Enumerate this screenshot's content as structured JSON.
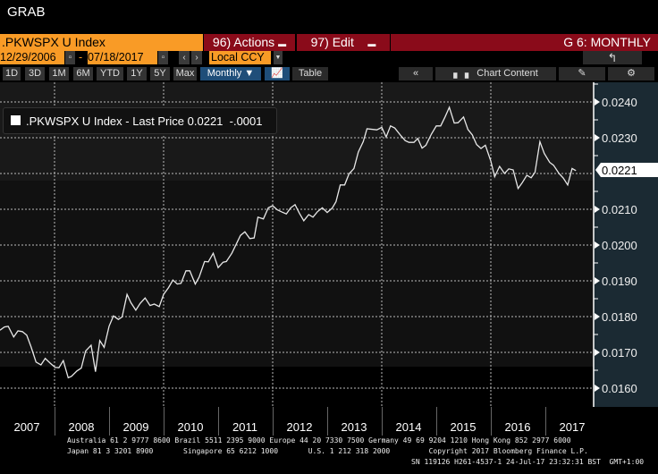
{
  "window": {
    "title": "GRAB"
  },
  "header": {
    "ticker": ".PKWSPX U Index",
    "actions_label": "96) Actions",
    "edit_label": "97) Edit",
    "chart_title": "G 6: MONTHLY"
  },
  "range": {
    "start_date": "12/29/2006",
    "separator": "-",
    "end_date": "07/18/2017",
    "currency": "Local CCY"
  },
  "toolbar": {
    "periods": [
      "1D",
      "3D",
      "1M",
      "6M",
      "YTD",
      "1Y",
      "5Y",
      "Max"
    ],
    "frequency": "Monthly ▼",
    "table_label": "Table",
    "collapse_label": "«",
    "chart_content_label": "Chart Content"
  },
  "legend": {
    "series": ".PKWSPX U Index - Last Price",
    "last": "0.0221",
    "change": "-.0001"
  },
  "colors": {
    "orange": "#f99b26",
    "red": "#8a0b1a",
    "blue": "#1f4e79",
    "line": "#e8e8e8"
  },
  "chart_data": {
    "type": "line",
    "title": ".PKWSPX U Index - Last Price",
    "xlabel": "",
    "ylabel": "",
    "ylim": [
      0.0155,
      0.0249
    ],
    "xlim": [
      2007.0,
      2017.89
    ],
    "yticks": [
      "0.0160",
      "0.0170",
      "0.0180",
      "0.0190",
      "0.0200",
      "0.0210",
      "0.0220",
      "0.0230",
      "0.0240"
    ],
    "ytick_values": [
      0.016,
      0.017,
      0.018,
      0.019,
      0.02,
      0.021,
      0.022,
      0.023,
      0.024
    ],
    "xticks": [
      "2007",
      "2008",
      "2009",
      "2010",
      "2011",
      "2012",
      "2013",
      "2014",
      "2015",
      "2016",
      "2017"
    ],
    "last_value_label": "0.0221",
    "grid": true,
    "legend_position": "top-left",
    "series": [
      {
        "name": ".PKWSPX U Index",
        "points": [
          [
            2007.0,
            0.01762
          ],
          [
            2007.08,
            0.01771
          ],
          [
            2007.15,
            0.01773
          ],
          [
            2007.25,
            0.01743
          ],
          [
            2007.33,
            0.0176
          ],
          [
            2007.41,
            0.01758
          ],
          [
            2007.49,
            0.01748
          ],
          [
            2007.57,
            0.01715
          ],
          [
            2007.66,
            0.01673
          ],
          [
            2007.75,
            0.01665
          ],
          [
            2007.83,
            0.01683
          ],
          [
            2007.92,
            0.0167
          ],
          [
            2008.01,
            0.01658
          ],
          [
            2008.08,
            0.01657
          ],
          [
            2008.16,
            0.01677
          ],
          [
            2008.25,
            0.01629
          ],
          [
            2008.31,
            0.01633
          ],
          [
            2008.41,
            0.01648
          ],
          [
            2008.49,
            0.01656
          ],
          [
            2008.57,
            0.01704
          ],
          [
            2008.67,
            0.0172
          ],
          [
            2008.75,
            0.01646
          ],
          [
            2008.83,
            0.01733
          ],
          [
            2008.91,
            0.01714
          ],
          [
            2009.0,
            0.01773
          ],
          [
            2009.08,
            0.01802
          ],
          [
            2009.17,
            0.01792
          ],
          [
            2009.24,
            0.01799
          ],
          [
            2009.33,
            0.01862
          ],
          [
            2009.4,
            0.01839
          ],
          [
            2009.49,
            0.01818
          ],
          [
            2009.57,
            0.01837
          ],
          [
            2009.66,
            0.01852
          ],
          [
            2009.75,
            0.01831
          ],
          [
            2009.83,
            0.01835
          ],
          [
            2009.92,
            0.01828
          ],
          [
            2010.0,
            0.01862
          ],
          [
            2010.09,
            0.01881
          ],
          [
            2010.17,
            0.01902
          ],
          [
            2010.25,
            0.01891
          ],
          [
            2010.32,
            0.01893
          ],
          [
            2010.41,
            0.01928
          ],
          [
            2010.48,
            0.01928
          ],
          [
            2010.58,
            0.01891
          ],
          [
            2010.65,
            0.0191
          ],
          [
            2010.75,
            0.01954
          ],
          [
            2010.82,
            0.01953
          ],
          [
            2010.91,
            0.01977
          ],
          [
            2011.0,
            0.01937
          ],
          [
            2011.09,
            0.01952
          ],
          [
            2011.15,
            0.01954
          ],
          [
            2011.25,
            0.01977
          ],
          [
            2011.41,
            0.02027
          ],
          [
            2011.49,
            0.02037
          ],
          [
            2011.58,
            0.02018
          ],
          [
            2011.66,
            0.0202
          ],
          [
            2011.73,
            0.02078
          ],
          [
            2011.83,
            0.02073
          ],
          [
            2011.92,
            0.02104
          ],
          [
            2012.0,
            0.0211
          ],
          [
            2012.08,
            0.02099
          ],
          [
            2012.16,
            0.02093
          ],
          [
            2012.25,
            0.02087
          ],
          [
            2012.33,
            0.02104
          ],
          [
            2012.41,
            0.02113
          ],
          [
            2012.49,
            0.02089
          ],
          [
            2012.57,
            0.02068
          ],
          [
            2012.66,
            0.02085
          ],
          [
            2012.74,
            0.02078
          ],
          [
            2012.82,
            0.02093
          ],
          [
            2012.91,
            0.02104
          ],
          [
            2013.0,
            0.02091
          ],
          [
            2013.09,
            0.02103
          ],
          [
            2013.16,
            0.02121
          ],
          [
            2013.24,
            0.02168
          ],
          [
            2013.32,
            0.02168
          ],
          [
            2013.4,
            0.02199
          ],
          [
            2013.49,
            0.02214
          ],
          [
            2013.57,
            0.0226
          ],
          [
            2013.66,
            0.02289
          ],
          [
            2013.73,
            0.02325
          ],
          [
            2013.91,
            0.02322
          ],
          [
            2014.0,
            0.02329
          ],
          [
            2014.08,
            0.02302
          ],
          [
            2014.16,
            0.02333
          ],
          [
            2014.24,
            0.02327
          ],
          [
            2014.35,
            0.02306
          ],
          [
            2014.43,
            0.02292
          ],
          [
            2014.5,
            0.02287
          ],
          [
            2014.59,
            0.02287
          ],
          [
            2014.66,
            0.02298
          ],
          [
            2014.74,
            0.02271
          ],
          [
            2014.81,
            0.02279
          ],
          [
            2014.91,
            0.0231
          ],
          [
            2015.0,
            0.02333
          ],
          [
            2015.08,
            0.02333
          ],
          [
            2015.16,
            0.02358
          ],
          [
            2015.24,
            0.02385
          ],
          [
            2015.33,
            0.02341
          ],
          [
            2015.4,
            0.02342
          ],
          [
            2015.5,
            0.02358
          ],
          [
            2015.58,
            0.02323
          ],
          [
            2015.66,
            0.02308
          ],
          [
            2015.74,
            0.02281
          ],
          [
            2015.82,
            0.0227
          ],
          [
            2015.9,
            0.02279
          ],
          [
            2016.0,
            0.02235
          ],
          [
            2016.07,
            0.02191
          ],
          [
            2016.16,
            0.0222
          ],
          [
            2016.25,
            0.022
          ],
          [
            2016.33,
            0.02213
          ],
          [
            2016.41,
            0.0221
          ],
          [
            2016.5,
            0.02158
          ],
          [
            2016.57,
            0.02173
          ],
          [
            2016.66,
            0.02195
          ],
          [
            2016.74,
            0.02188
          ],
          [
            2016.81,
            0.02203
          ],
          [
            2016.9,
            0.02289
          ],
          [
            2016.98,
            0.02256
          ],
          [
            2017.08,
            0.02231
          ],
          [
            2017.15,
            0.02223
          ],
          [
            2017.25,
            0.022
          ],
          [
            2017.33,
            0.02187
          ],
          [
            2017.41,
            0.02168
          ],
          [
            2017.49,
            0.02214
          ],
          [
            2017.56,
            0.02208
          ]
        ]
      }
    ]
  },
  "footer": {
    "line1": "Australia 61 2 9777 8600 Brazil 5511 2395 9000 Europe 44 20 7330 7500 Germany 49 69 9204 1210 Hong Kong 852 2977 6000",
    "line2": "Japan 81 3 3201 8900       Singapore 65 6212 1000       U.S. 1 212 318 2000         Copyright 2017 Bloomberg Finance L.P.",
    "line3": "SN 119126 H261-4537-1 24-Jul-17 23:32:31 BST  GMT+1:00"
  }
}
